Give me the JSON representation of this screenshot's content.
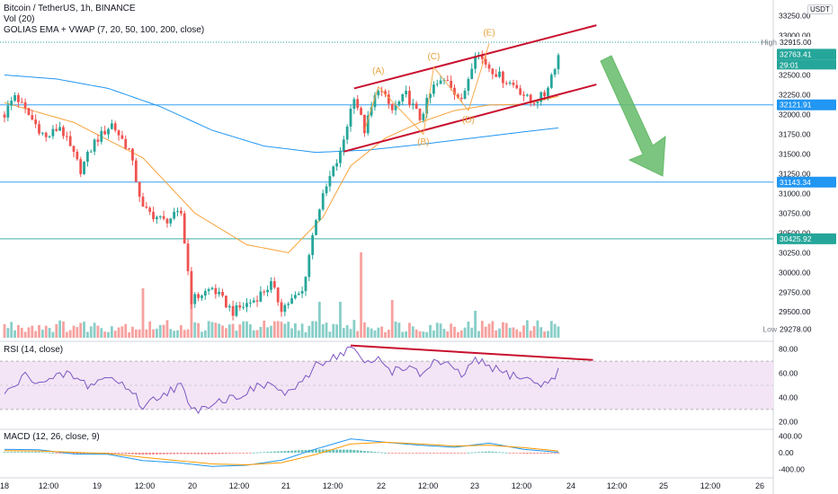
{
  "header": {
    "symbol_line": "Bitcoin / TetherUS, 1h, BINANCE",
    "vol_label": "Vol (20)",
    "ema_label": "GOLIAS EMA + VWAP (7, 20, 50, 100, 200, close)",
    "currency": "USDT"
  },
  "chart_data": [
    {
      "type": "candlestick",
      "title": "Bitcoin / TetherUS, 1h, BINANCE",
      "x_tick_labels": [
        "18",
        "12:00",
        "19",
        "12:00",
        "20",
        "12:00",
        "21",
        "12:00",
        "22",
        "12:00",
        "23",
        "12:00",
        "24",
        "12:00",
        "25",
        "12:00",
        "26"
      ],
      "y_tick_labels": [
        "33250.00",
        "33000.00",
        "32500.00",
        "32250.00",
        "32000.00",
        "31750.00",
        "31500.00",
        "31250.00",
        "31000.00",
        "30750.00",
        "30500.00",
        "30250.00",
        "30000.00",
        "29750.00",
        "29500.00"
      ],
      "ylim": [
        29150,
        33450
      ],
      "price_tags": {
        "high": "32915.00",
        "last": "32763.41",
        "countdown": "29:01",
        "low": "29278.00"
      },
      "tag_labels": {
        "high": "High",
        "low": "Low"
      },
      "horizontal_lines": [
        {
          "value": 32121.91,
          "label": "32121.91",
          "color": "#2196f3"
        },
        {
          "value": 31143.34,
          "label": "31143.34",
          "color": "#2196f3"
        },
        {
          "value": 30425.92,
          "label": "30425.92",
          "color": "#26a69a"
        }
      ],
      "keypoints_close": [
        [
          0,
          32000
        ],
        [
          3,
          32250
        ],
        [
          6,
          32050
        ],
        [
          12,
          31700
        ],
        [
          16,
          31850
        ],
        [
          22,
          31300
        ],
        [
          26,
          31650
        ],
        [
          31,
          31880
        ],
        [
          36,
          31550
        ],
        [
          40,
          30800
        ],
        [
          46,
          30650
        ],
        [
          51,
          30750
        ],
        [
          54,
          29650
        ],
        [
          60,
          29800
        ],
        [
          66,
          29500
        ],
        [
          72,
          29650
        ],
        [
          77,
          29850
        ],
        [
          80,
          29550
        ],
        [
          86,
          29750
        ],
        [
          90,
          30700
        ],
        [
          94,
          31200
        ],
        [
          97,
          31500
        ],
        [
          101,
          32250
        ],
        [
          104,
          31800
        ],
        [
          108,
          32350
        ],
        [
          112,
          32050
        ],
        [
          116,
          32250
        ],
        [
          120,
          31950
        ],
        [
          124,
          32350
        ],
        [
          128,
          32450
        ],
        [
          132,
          32150
        ],
        [
          136,
          32800
        ],
        [
          140,
          32600
        ],
        [
          144,
          32450
        ],
        [
          148,
          32350
        ],
        [
          152,
          32150
        ],
        [
          156,
          32250
        ],
        [
          160,
          32750
        ]
      ],
      "ema_keypoints": [
        [
          0,
          32150
        ],
        [
          20,
          31900
        ],
        [
          40,
          31450
        ],
        [
          55,
          30750
        ],
        [
          70,
          30350
        ],
        [
          82,
          30250
        ],
        [
          92,
          30700
        ],
        [
          100,
          31350
        ],
        [
          110,
          31700
        ],
        [
          120,
          31900
        ],
        [
          130,
          32050
        ],
        [
          140,
          32120
        ],
        [
          150,
          32130
        ],
        [
          160,
          32230
        ]
      ],
      "ma200_keypoints": [
        [
          0,
          32500
        ],
        [
          15,
          32450
        ],
        [
          30,
          32330
        ],
        [
          45,
          32100
        ],
        [
          60,
          31800
        ],
        [
          75,
          31600
        ],
        [
          90,
          31520
        ],
        [
          105,
          31550
        ],
        [
          120,
          31620
        ],
        [
          135,
          31700
        ],
        [
          150,
          31780
        ],
        [
          160,
          31830
        ]
      ],
      "annotations": {
        "wave_labels": [
          {
            "label": "(A)",
            "x": 108,
            "y": 32520
          },
          {
            "label": "(B)",
            "x": 121,
            "y": 31620
          },
          {
            "label": "(C)",
            "x": 124,
            "y": 32700
          },
          {
            "label": "(D)",
            "x": 134,
            "y": 31900
          },
          {
            "label": "(E)",
            "x": 140,
            "y": 33000
          }
        ],
        "wave_path": [
          [
            104,
            31800
          ],
          [
            108,
            32350
          ],
          [
            121,
            31750
          ],
          [
            124,
            32600
          ],
          [
            134,
            32050
          ],
          [
            140,
            32900
          ]
        ],
        "channel_upper": [
          [
            101,
            32330
          ],
          [
            171,
            33130
          ]
        ],
        "channel_lower": [
          [
            98,
            31530
          ],
          [
            171,
            32380
          ]
        ],
        "arrow": "down"
      }
    },
    {
      "type": "bar",
      "title": "Vol (20)"
    },
    {
      "type": "line",
      "title": "RSI (14, close)",
      "y_tick_labels": [
        "80.00",
        "60.00",
        "40.00",
        "20.00"
      ],
      "ylim": [
        15,
        85
      ],
      "band": [
        30,
        70
      ],
      "keypoints": [
        [
          0,
          42
        ],
        [
          6,
          58
        ],
        [
          12,
          52
        ],
        [
          18,
          60
        ],
        [
          24,
          50
        ],
        [
          30,
          57
        ],
        [
          36,
          48
        ],
        [
          40,
          32
        ],
        [
          46,
          44
        ],
        [
          51,
          50
        ],
        [
          54,
          28
        ],
        [
          60,
          36
        ],
        [
          66,
          40
        ],
        [
          72,
          47
        ],
        [
          77,
          52
        ],
        [
          80,
          43
        ],
        [
          86,
          50
        ],
        [
          90,
          68
        ],
        [
          94,
          72
        ],
        [
          97,
          76
        ],
        [
          101,
          82
        ],
        [
          104,
          66
        ],
        [
          108,
          72
        ],
        [
          112,
          62
        ],
        [
          116,
          66
        ],
        [
          120,
          58
        ],
        [
          124,
          70
        ],
        [
          128,
          66
        ],
        [
          132,
          58
        ],
        [
          136,
          70
        ],
        [
          140,
          66
        ],
        [
          144,
          60
        ],
        [
          148,
          58
        ],
        [
          152,
          54
        ],
        [
          156,
          50
        ],
        [
          160,
          62
        ]
      ],
      "divergence_line": [
        [
          100,
          83
        ],
        [
          170,
          71
        ]
      ]
    },
    {
      "type": "line",
      "title": "MACD (12, 26, close, 9)",
      "y_tick_labels": [
        "400.00",
        "0.00",
        "-400.00"
      ],
      "ylim": [
        -560,
        560
      ],
      "macd_keypoints": [
        [
          0,
          80
        ],
        [
          10,
          70
        ],
        [
          20,
          -30
        ],
        [
          30,
          -40
        ],
        [
          40,
          -190
        ],
        [
          50,
          -240
        ],
        [
          60,
          -330
        ],
        [
          70,
          -300
        ],
        [
          80,
          -180
        ],
        [
          90,
          90
        ],
        [
          100,
          330
        ],
        [
          110,
          250
        ],
        [
          120,
          180
        ],
        [
          130,
          130
        ],
        [
          140,
          230
        ],
        [
          150,
          80
        ],
        [
          160,
          10
        ]
      ],
      "signal_keypoints": [
        [
          0,
          50
        ],
        [
          10,
          40
        ],
        [
          20,
          10
        ],
        [
          30,
          -20
        ],
        [
          40,
          -110
        ],
        [
          50,
          -190
        ],
        [
          60,
          -270
        ],
        [
          70,
          -290
        ],
        [
          80,
          -240
        ],
        [
          90,
          -40
        ],
        [
          100,
          210
        ],
        [
          110,
          250
        ],
        [
          120,
          210
        ],
        [
          130,
          160
        ],
        [
          140,
          180
        ],
        [
          150,
          120
        ],
        [
          160,
          40
        ]
      ]
    }
  ],
  "colors": {
    "up": "#26a69a",
    "down": "#ef5350",
    "ema": "#f7a23b",
    "ma200": "#2196f3",
    "rsi": "#7e57c2",
    "rsi_band": "#f3e5f5",
    "annotation": "#c8102e",
    "arrow": "#66bb6a",
    "macd": "#2196f3",
    "signal": "#ff9800"
  }
}
